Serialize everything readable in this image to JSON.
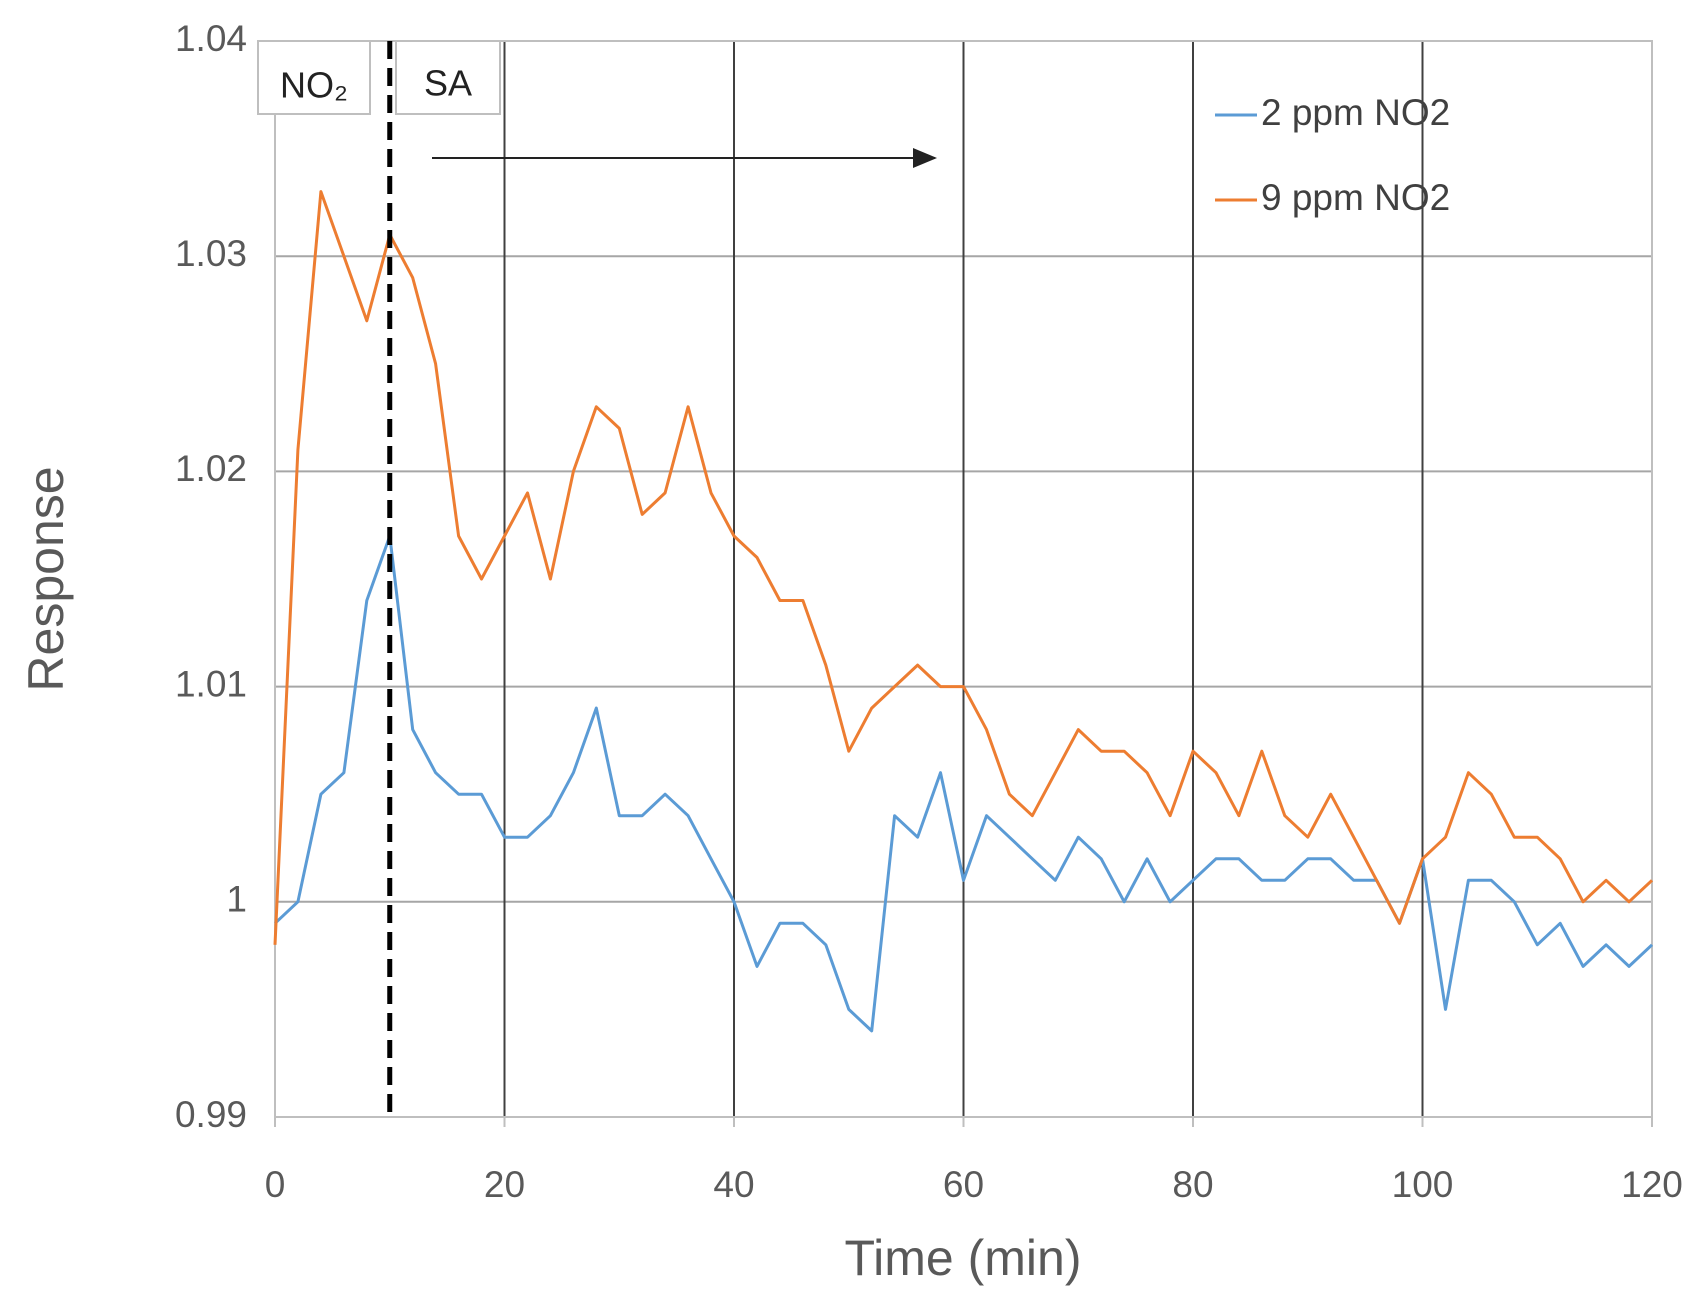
{
  "chart_data": {
    "type": "line",
    "xlabel": "Time (min)",
    "ylabel": "Response",
    "x": [
      0,
      2,
      4,
      6,
      8,
      10,
      12,
      14,
      16,
      18,
      20,
      22,
      24,
      26,
      28,
      30,
      32,
      34,
      36,
      38,
      40,
      42,
      44,
      46,
      48,
      50,
      52,
      54,
      56,
      58,
      60,
      62,
      64,
      66,
      68,
      70,
      72,
      74,
      76,
      78,
      80,
      82,
      84,
      86,
      88,
      90,
      92,
      94,
      96,
      98,
      100,
      102,
      104,
      106,
      108,
      110,
      112,
      114,
      116,
      118,
      120
    ],
    "series": [
      {
        "name": "2 ppm NO2",
        "color": "#5b9bd5",
        "values": [
          0.999,
          1.0,
          1.005,
          1.006,
          1.014,
          1.017,
          1.008,
          1.006,
          1.005,
          1.005,
          1.003,
          1.003,
          1.004,
          1.006,
          1.009,
          1.004,
          1.004,
          1.005,
          1.004,
          1.002,
          1.0,
          0.997,
          0.999,
          0.999,
          0.998,
          0.995,
          0.994,
          1.004,
          1.003,
          1.006,
          1.001,
          1.004,
          1.003,
          1.002,
          1.001,
          1.003,
          1.002,
          1.0,
          1.002,
          1.0,
          1.001,
          1.002,
          1.002,
          1.001,
          1.001,
          1.002,
          1.002,
          1.001,
          1.001,
          0.999,
          1.002,
          0.995,
          1.001,
          1.001,
          1.0,
          0.998,
          0.999,
          0.997,
          0.998,
          0.997,
          0.998
        ]
      },
      {
        "name": "9 ppm NO2",
        "color": "#ed7d31",
        "values": [
          0.998,
          1.021,
          1.033,
          1.03,
          1.027,
          1.031,
          1.029,
          1.025,
          1.017,
          1.015,
          1.017,
          1.019,
          1.015,
          1.02,
          1.023,
          1.022,
          1.018,
          1.019,
          1.023,
          1.019,
          1.017,
          1.016,
          1.014,
          1.014,
          1.011,
          1.007,
          1.009,
          1.01,
          1.011,
          1.01,
          1.01,
          1.008,
          1.005,
          1.004,
          1.006,
          1.008,
          1.007,
          1.007,
          1.006,
          1.004,
          1.007,
          1.006,
          1.004,
          1.007,
          1.004,
          1.003,
          1.005,
          1.003,
          1.001,
          0.999,
          1.002,
          1.003,
          1.006,
          1.005,
          1.003,
          1.003,
          1.002,
          1.0,
          1.001,
          1.0,
          1.001
        ]
      }
    ],
    "xlim": [
      0,
      120
    ],
    "xticks": [
      0,
      20,
      40,
      60,
      80,
      100,
      120
    ],
    "ylim": [
      0.99,
      1.04
    ],
    "yticks": [
      0.99,
      1,
      1.01,
      1.02,
      1.03,
      1.04
    ],
    "grid": true,
    "legend": "upper right",
    "annotations": [
      "NO₂",
      "SA"
    ],
    "vlines": [
      10
    ]
  }
}
